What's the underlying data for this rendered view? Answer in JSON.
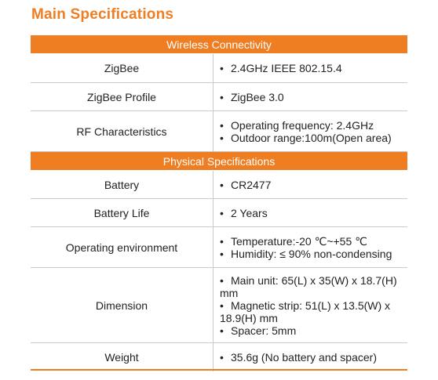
{
  "title": "Main Specifications",
  "accent_color": "#ef7d22",
  "sections": [
    {
      "heading": "Wireless Connectivity",
      "rows": [
        {
          "label": "ZigBee",
          "values": [
            "2.4GHz IEEE 802.15.4"
          ]
        },
        {
          "label": "ZigBee Profile",
          "values": [
            "ZigBee 3.0"
          ]
        },
        {
          "label": "RF Characteristics",
          "values": [
            "Operating frequency: 2.4GHz",
            "Outdoor range:100m(Open area)"
          ]
        }
      ]
    },
    {
      "heading": "Physical Specifications",
      "rows": [
        {
          "label": "Battery",
          "values": [
            "CR2477"
          ]
        },
        {
          "label": "Battery Life",
          "values": [
            "2 Years"
          ]
        },
        {
          "label": "Operating environment",
          "values": [
            "Temperature:-20 ℃~+55 ℃",
            "Humidity: ≤ 90% non-condensing"
          ]
        },
        {
          "label": "Dimension",
          "values": [
            "Main unit: 65(L) x 35(W) x 18.7(H) mm",
            "Magnetic strip: 51(L) x 13.5(W) x 18.9(H) mm",
            "Spacer: 5mm"
          ]
        },
        {
          "label": "Weight",
          "values": [
            "35.6g (No battery and spacer)"
          ]
        }
      ]
    }
  ]
}
